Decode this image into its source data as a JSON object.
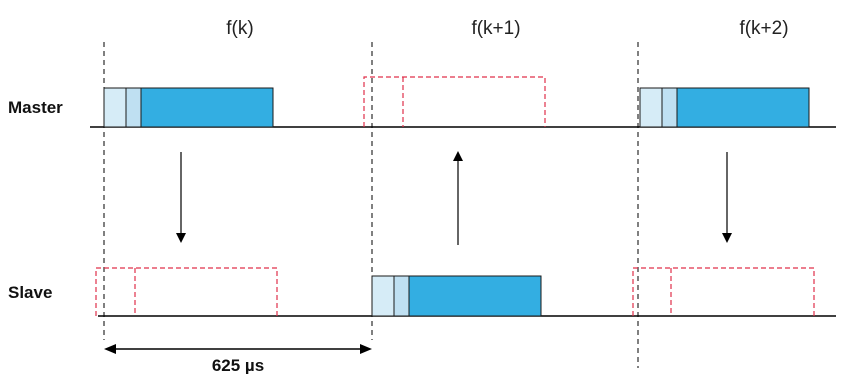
{
  "frames": [
    {
      "label": "f(k)"
    },
    {
      "label": "f(k+1)"
    },
    {
      "label": "f(k+2)"
    }
  ],
  "rows": {
    "master": "Master",
    "slave": "Slave"
  },
  "duration": "625 µs",
  "colors": {
    "packet_fill": "#33aee2",
    "packet_header_fill": "#d6ecf7",
    "packet_stroke": "#1a1a1a",
    "slot_outline": "#e0304a",
    "line": "#000000"
  }
}
